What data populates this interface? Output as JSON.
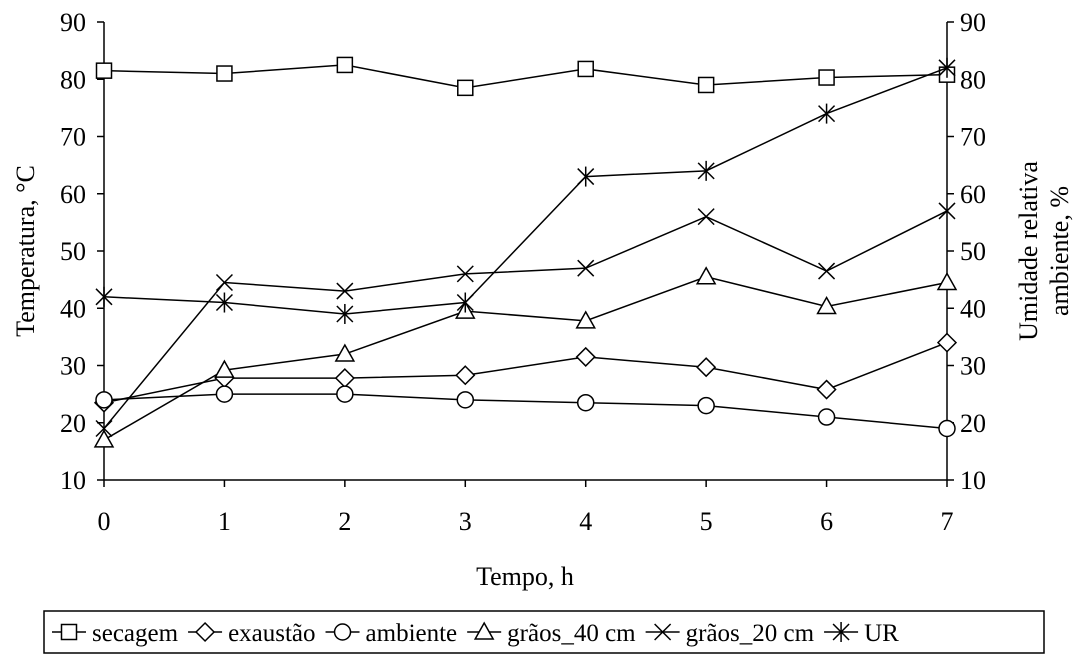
{
  "chart_data": {
    "type": "line",
    "xlabel": "Tempo, h",
    "ylabel": "Temperatura, °C",
    "y2label_lines": [
      "Umidade relativa",
      "ambiente, %"
    ],
    "x": [
      0,
      1,
      2,
      3,
      4,
      5,
      6,
      7
    ],
    "xlim": [
      0,
      7
    ],
    "ylim": [
      10,
      90
    ],
    "y2lim": [
      10,
      90
    ],
    "xticks": [
      "0",
      "1",
      "2",
      "3",
      "4",
      "5",
      "6",
      "7"
    ],
    "yticks": [
      "10",
      "20",
      "30",
      "40",
      "50",
      "60",
      "70",
      "80",
      "90"
    ],
    "y2ticks": [
      "10",
      "20",
      "30",
      "40",
      "50",
      "60",
      "70",
      "80",
      "90"
    ],
    "grid": false,
    "legend_position": "bottom",
    "series": [
      {
        "name": "secagem",
        "marker": "square",
        "axis": "left",
        "values": [
          81.5,
          81,
          82.5,
          78.5,
          81.8,
          79,
          80.3,
          80.8
        ]
      },
      {
        "name": "exaustão",
        "marker": "diamond",
        "axis": "left",
        "values": [
          23.5,
          27.8,
          27.8,
          28.3,
          31.5,
          29.7,
          25.8,
          34
        ]
      },
      {
        "name": "ambiente",
        "marker": "circle",
        "axis": "left",
        "values": [
          24,
          25,
          25,
          24,
          23.5,
          23,
          21,
          19
        ]
      },
      {
        "name": "grãos_40 cm",
        "marker": "triangle",
        "axis": "left",
        "values": [
          17,
          29.2,
          32,
          39.5,
          37.8,
          45.5,
          40.3,
          44.5
        ]
      },
      {
        "name": "grãos_20 cm",
        "marker": "x",
        "axis": "left",
        "values": [
          19,
          44.5,
          43,
          46,
          47,
          56,
          46.5,
          57
        ]
      },
      {
        "name": "UR",
        "marker": "star",
        "axis": "right",
        "values": [
          42,
          41,
          39,
          41,
          63,
          64,
          74,
          82
        ]
      }
    ]
  }
}
